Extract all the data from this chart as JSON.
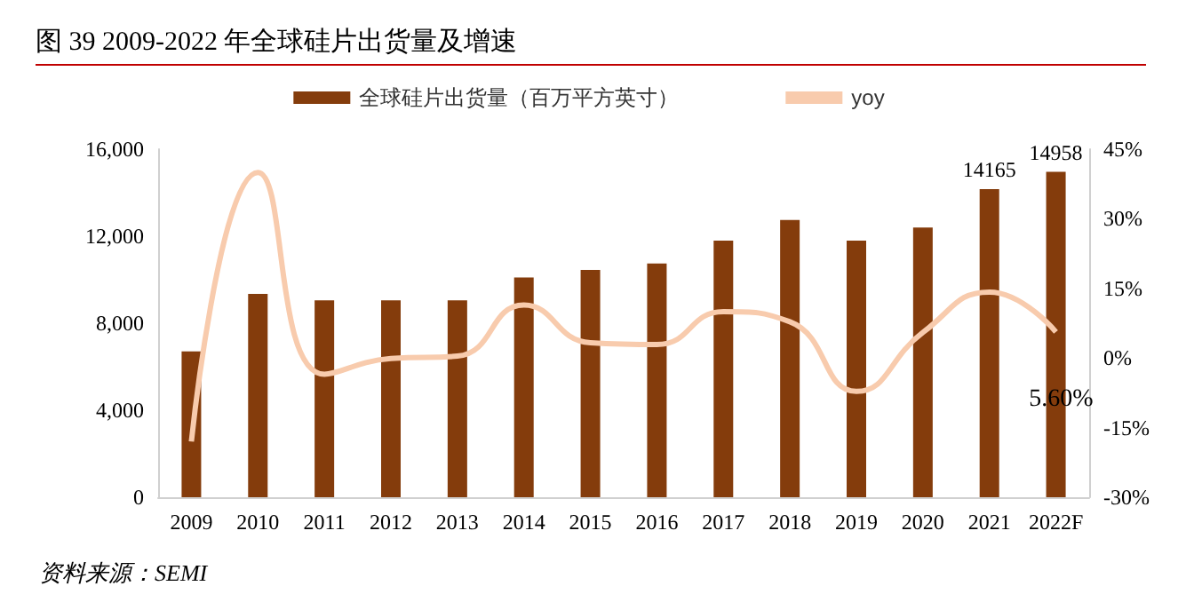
{
  "chart_data": {
    "type": "bar",
    "title": "图  39 2009-2022 年全球硅片出货量及增速",
    "categories": [
      "2009",
      "2010",
      "2011",
      "2012",
      "2013",
      "2014",
      "2015",
      "2016",
      "2017",
      "2018",
      "2019",
      "2020",
      "2021",
      "2022F"
    ],
    "series": [
      {
        "name": "全球硅片出货量（百万平方英寸）",
        "color": "#843c0c",
        "values": [
          6700,
          9350,
          9050,
          9050,
          9050,
          10100,
          10450,
          10750,
          11800,
          12750,
          11800,
          12400,
          14165,
          14958
        ],
        "value_labels": [
          null,
          null,
          null,
          null,
          null,
          null,
          null,
          null,
          null,
          null,
          null,
          null,
          "14165",
          "14958"
        ]
      },
      {
        "name": "yoy",
        "type": "line",
        "axis": "y2",
        "color": "#f8cbad",
        "values": [
          -18,
          40,
          -3.5,
          -0.1,
          0.4,
          11.4,
          3.3,
          2.9,
          10,
          7.8,
          -7.2,
          5.5,
          14.2,
          5.6
        ],
        "value_labels": [
          null,
          null,
          null,
          null,
          null,
          null,
          null,
          null,
          null,
          null,
          null,
          null,
          null,
          "5.60%"
        ]
      }
    ],
    "ylim": [
      0,
      16000
    ],
    "yticks": [
      {
        "value": 0,
        "label": "0"
      },
      {
        "value": 4000,
        "label": "4,000"
      },
      {
        "value": 8000,
        "label": "8,000"
      },
      {
        "value": 12000,
        "label": "12,000"
      },
      {
        "value": 16000,
        "label": "16,000"
      }
    ],
    "y2lim": [
      -30,
      45
    ],
    "y2ticks": [
      {
        "value": -30,
        "label": "-30%"
      },
      {
        "value": -15,
        "label": "-15%"
      },
      {
        "value": 0,
        "label": "0%"
      },
      {
        "value": 15,
        "label": "15%"
      },
      {
        "value": 30,
        "label": "30%"
      },
      {
        "value": 45,
        "label": "45%"
      }
    ],
    "grid": false,
    "legend": "top",
    "marker": "none",
    "annotations": [
      "资料来源：SEMI"
    ]
  }
}
